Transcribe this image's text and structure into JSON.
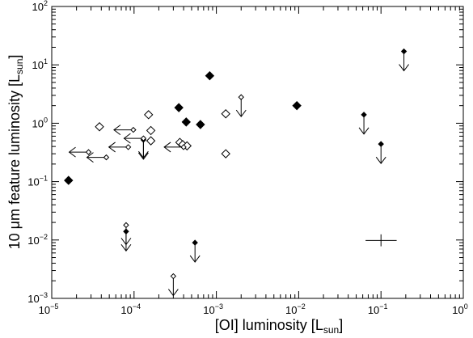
{
  "chart_data": {
    "type": "scatter",
    "title": "",
    "xlabel": {
      "main": "[OI] luminosity [L",
      "sub": "sun",
      "close": "]"
    },
    "ylabel": {
      "main": "10 μm feature luminosity [L",
      "sub": "sun",
      "close": "]"
    },
    "xscale": "log",
    "yscale": "log",
    "xlim": [
      1e-05,
      1
    ],
    "ylim": [
      0.001,
      100
    ],
    "x_ticks": [
      {
        "value": 1e-05,
        "base": "10",
        "exp": "−5"
      },
      {
        "value": 0.0001,
        "base": "10",
        "exp": "−4"
      },
      {
        "value": 0.001,
        "base": "10",
        "exp": "−3"
      },
      {
        "value": 0.01,
        "base": "10",
        "exp": "−2"
      },
      {
        "value": 0.1,
        "base": "10",
        "exp": "−1"
      },
      {
        "value": 1,
        "base": "10",
        "exp": "0"
      }
    ],
    "y_ticks": [
      {
        "value": 0.001,
        "base": "10",
        "exp": "−3"
      },
      {
        "value": 0.01,
        "base": "10",
        "exp": "−2"
      },
      {
        "value": 0.1,
        "base": "10",
        "exp": "−1"
      },
      {
        "value": 1,
        "base": "10",
        "exp": "0"
      },
      {
        "value": 10,
        "base": "10",
        "exp": "1"
      },
      {
        "value": 100,
        "base": "10",
        "exp": "2"
      }
    ],
    "grid": false,
    "legend": "none",
    "marker_color": "#000000",
    "series": [
      {
        "marker": "filled-diamond",
        "points": [
          {
            "x": 1.6e-05,
            "y": 0.105
          },
          {
            "x": 0.00035,
            "y": 1.85
          },
          {
            "x": 0.00043,
            "y": 1.05
          },
          {
            "x": 0.00064,
            "y": 0.95
          },
          {
            "x": 0.00083,
            "y": 6.5
          },
          {
            "x": 0.0095,
            "y": 2.0
          }
        ]
      },
      {
        "marker": "open-diamond",
        "points": [
          {
            "x": 3.8e-05,
            "y": 0.87
          },
          {
            "x": 0.00015,
            "y": 1.4
          },
          {
            "x": 0.00016,
            "y": 0.75
          },
          {
            "x": 0.00016,
            "y": 0.5
          },
          {
            "x": 0.00036,
            "y": 0.47
          },
          {
            "x": 0.00039,
            "y": 0.43
          },
          {
            "x": 0.00044,
            "y": 0.41
          },
          {
            "x": 0.0013,
            "y": 1.45
          },
          {
            "x": 0.0013,
            "y": 0.3
          }
        ]
      },
      {
        "marker": "small-filled-diamond",
        "limit": "upper-y",
        "points": [
          {
            "x": 0.00013,
            "y": 0.52
          },
          {
            "x": 8e-05,
            "y": 0.014
          },
          {
            "x": 0.00055,
            "y": 0.009
          },
          {
            "x": 0.062,
            "y": 1.4
          },
          {
            "x": 0.1,
            "y": 0.44
          },
          {
            "x": 0.19,
            "y": 17.0
          }
        ]
      },
      {
        "marker": "small-open-diamond",
        "limit": "upper-y",
        "points": [
          {
            "x": 0.002,
            "y": 2.8
          },
          {
            "x": 8e-05,
            "y": 0.018
          },
          {
            "x": 0.0003,
            "y": 0.0024
          }
        ]
      },
      {
        "marker": "small-open-diamond",
        "limit": "upper-x",
        "points": [
          {
            "x": 2.8e-05,
            "y": 0.32
          },
          {
            "x": 4.6e-05,
            "y": 0.26
          },
          {
            "x": 9.8e-05,
            "y": 0.77
          },
          {
            "x": 8.5e-05,
            "y": 0.39
          },
          {
            "x": 0.0004,
            "y": 0.39
          }
        ]
      },
      {
        "marker": "small-open-diamond",
        "limit": "upper-x-and-y",
        "points": [
          {
            "x": 0.00013,
            "y": 0.55
          }
        ]
      }
    ],
    "typical_error": {
      "x": 0.1,
      "y": 0.0098,
      "x_low": 0.065,
      "x_high": 0.155,
      "y_low": 0.0078,
      "y_high": 0.0125
    }
  }
}
